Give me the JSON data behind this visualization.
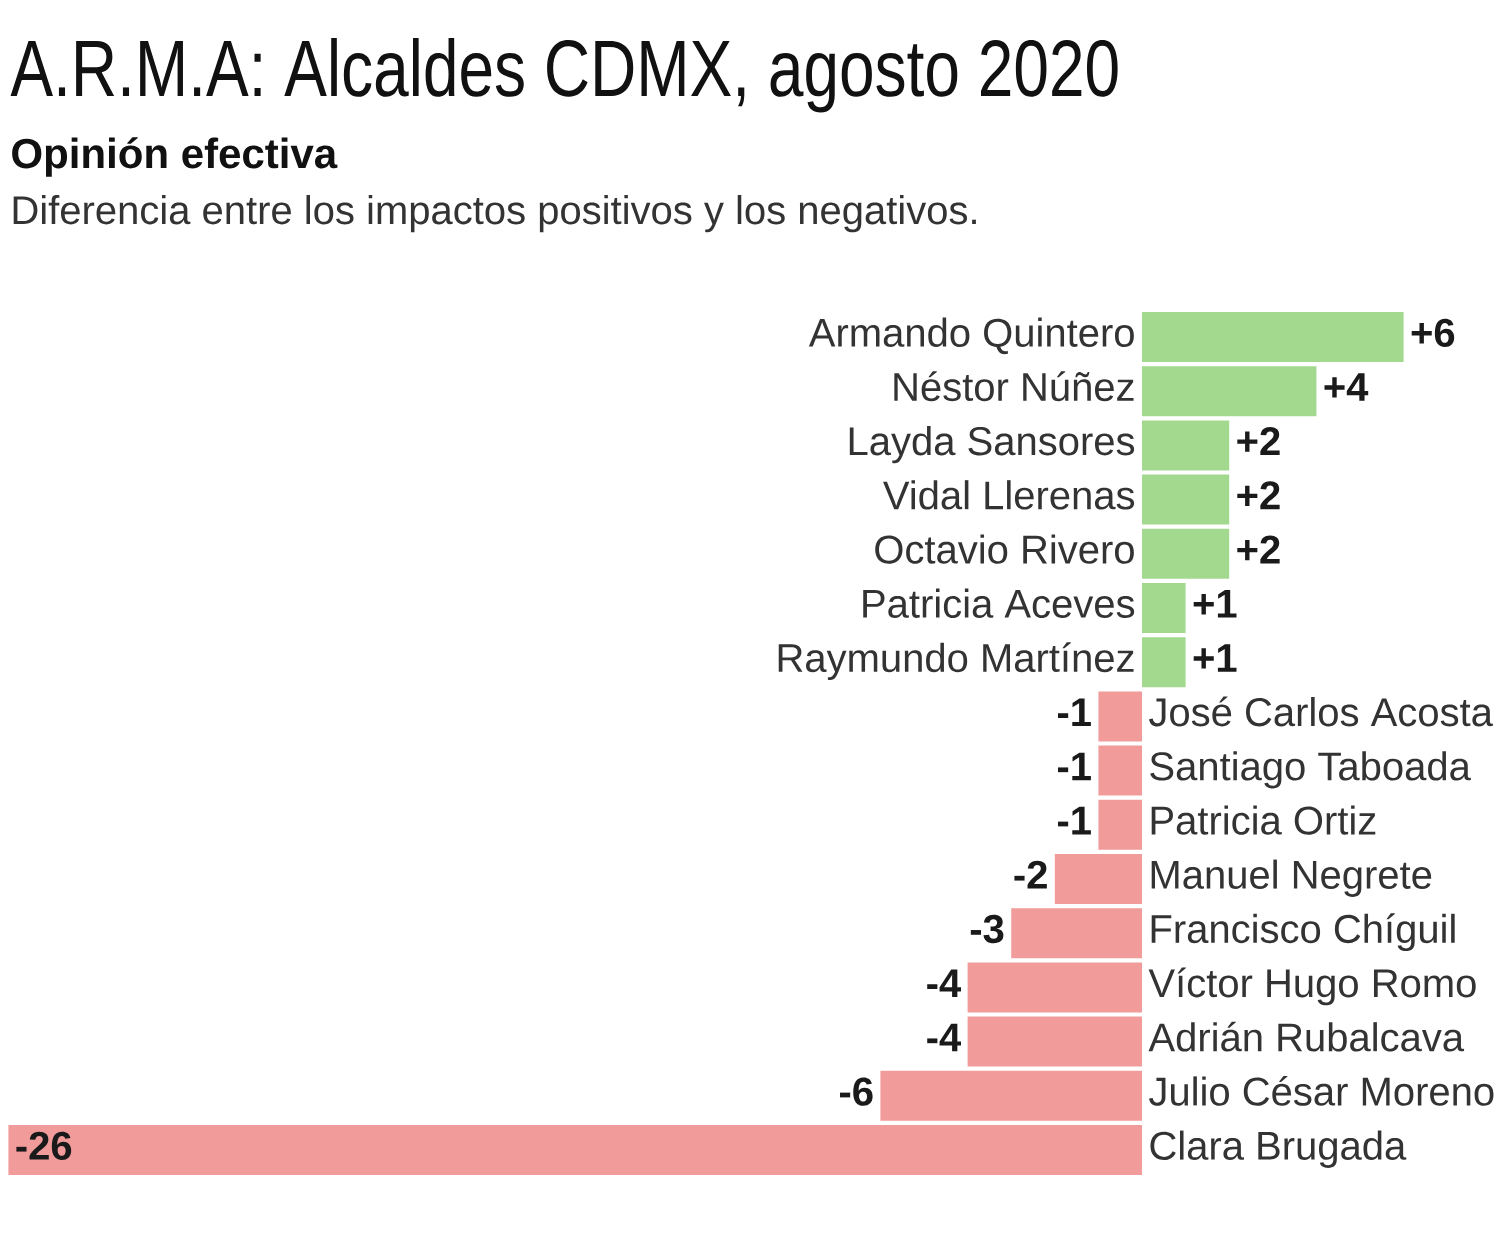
{
  "chart_data": {
    "type": "bar",
    "orientation": "horizontal",
    "title": "A.R.M.A: Alcaldes CDMX, agosto 2020",
    "subtitle": "Opinión efectiva",
    "annotations": [
      "Diferencia entre los impactos positivos y los negativos."
    ],
    "categories": [
      "Armando Quintero",
      "Néstor Núñez",
      "Layda Sansores",
      "Vidal Llerenas",
      "Octavio Rivero",
      "Patricia Aceves",
      "Raymundo Martínez",
      "José Carlos Acosta",
      "Santiago Taboada",
      "Patricia Ortiz",
      "Manuel Negrete",
      "Francisco Chíguil",
      "Víctor Hugo Romo",
      "Adrián Rubalcava",
      "Julio César Moreno",
      "Clara Brugada"
    ],
    "values": [
      6,
      4,
      2,
      2,
      2,
      1,
      1,
      -1,
      -1,
      -1,
      -2,
      -3,
      -4,
      -4,
      -6,
      -26
    ],
    "colors": [
      "#a3d98f",
      "#a3d98f",
      "#a3d98f",
      "#a3d98f",
      "#a3d98f",
      "#a3d98f",
      "#a3d98f",
      "#f29b9b",
      "#f29b9b",
      "#f29b9b",
      "#f29b9b",
      "#f29b9b",
      "#f29b9b",
      "#f29b9b",
      "#f29b9b",
      "#f29b9b"
    ],
    "value_labels": [
      "+6",
      "+4",
      "+2",
      "+2",
      "+2",
      "+1",
      "+1",
      "-1",
      "-1",
      "-1",
      "-2",
      "-3",
      "-4",
      "-4",
      "-6",
      "-26"
    ]
  }
}
